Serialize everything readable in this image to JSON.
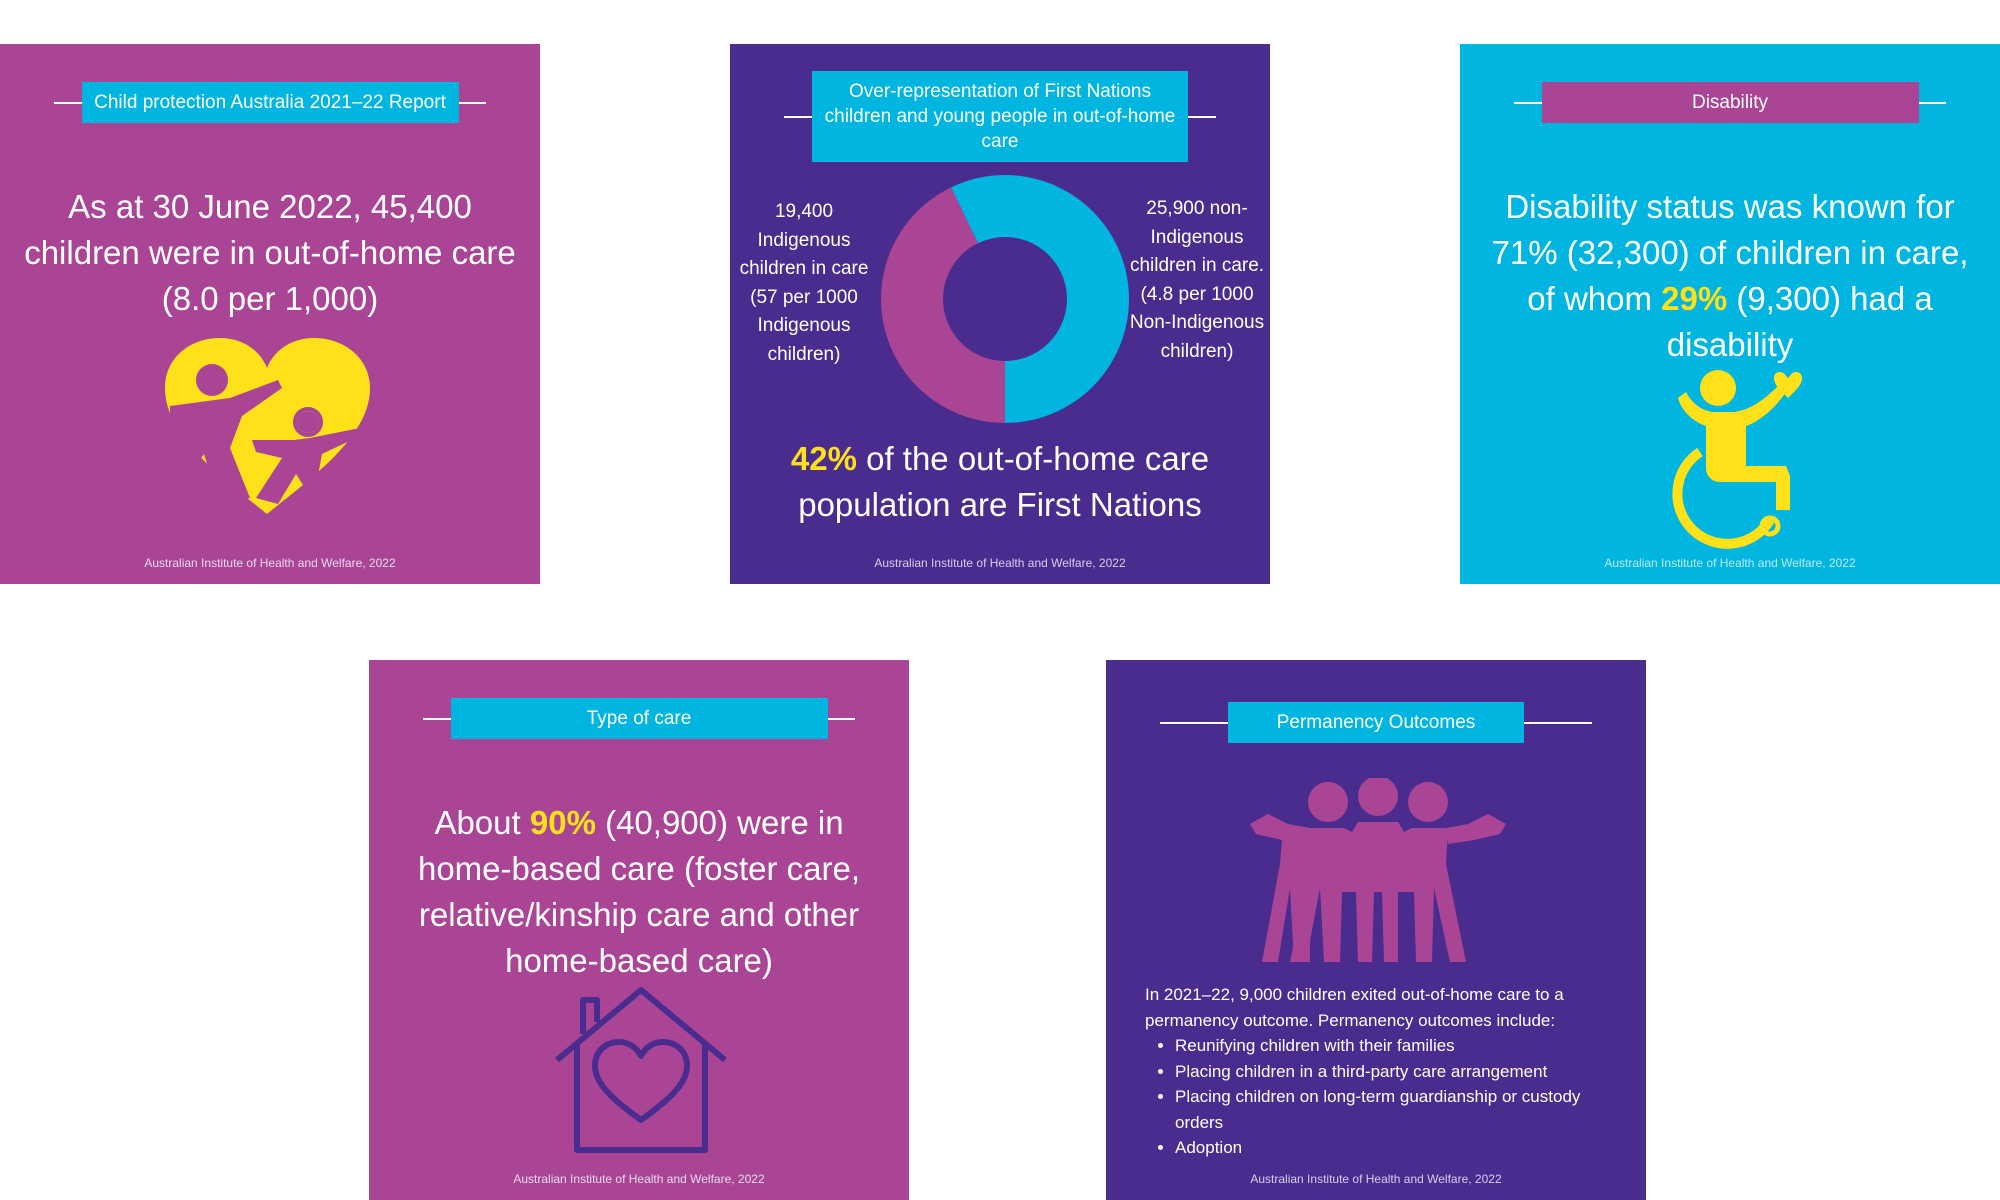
{
  "colors": {
    "purple": "#aa4596",
    "violet": "#4a2c8f",
    "cyan": "#00b5e0",
    "yellow": "#ffe11a"
  },
  "source": "Australian Institute of Health and Welfare, 2022",
  "card1": {
    "title": "Child protection Australia 2021–22 Report",
    "text": "As at 30 June 2022, 45,400 children were in out-of-home care (8.0 per 1,000)",
    "icon": "heart-family-icon"
  },
  "card2": {
    "title": "Over-representation of First Nations children and young people in out-of-home care",
    "left_label": "19,400 Indigenous children in care (57 per 1000 Indigenous children)",
    "right_label": "25,900 non-Indigenous children in care. (4.8 per 1000 Non-Indigenous children)",
    "highlight": "42%",
    "text": " of the out-of-home care population are First Nations",
    "donut": {
      "indigenous": 19400,
      "non_indigenous": 25900
    }
  },
  "card3": {
    "title": "Disability",
    "text_a": "Disability status was known for 71% (32,300) of children in care, of whom ",
    "highlight": "29%",
    "text_b": " (9,300) had a disability",
    "icon": "wheelchair-icon"
  },
  "card4": {
    "title": "Type of care",
    "text_a": "About ",
    "highlight": "90%",
    "text_b": " (40,900) were in home-based care (foster care, relative/kinship care and other home-based care)",
    "icon": "house-heart-icon"
  },
  "card5": {
    "title": "Permanency Outcomes",
    "intro": "In 2021–22, 9,000 children exited out-of-home care to a permanency outcome. Permanency outcomes include:",
    "items": [
      "Reunifying children with their families",
      "Placing children in a third-party care arrangement",
      "Placing children on long-term guardianship or custody orders",
      "Adoption"
    ],
    "icon": "group-people-icon"
  }
}
